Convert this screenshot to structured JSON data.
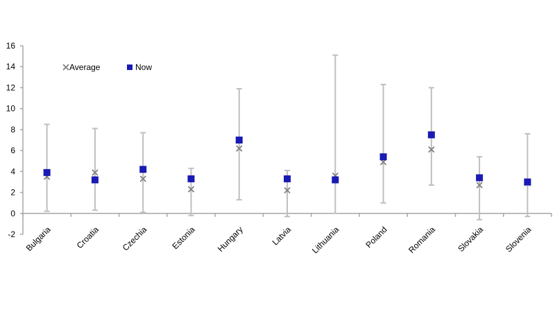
{
  "chart_data": {
    "type": "scatter",
    "title": "",
    "xlabel": "",
    "ylabel": "",
    "ylim": [
      -2,
      16
    ],
    "yticks": [
      -2,
      0,
      2,
      4,
      6,
      8,
      10,
      12,
      14,
      16
    ],
    "categories": [
      "Bulgaria",
      "Croatia",
      "Czechia",
      "Estonia",
      "Hungary",
      "Latvia",
      "Lithuania",
      "Poland",
      "Romania",
      "Slovakia",
      "Slovenia"
    ],
    "range_low": [
      0.2,
      0.3,
      0.1,
      -0.2,
      1.3,
      -0.3,
      0.0,
      1.0,
      2.7,
      -0.6,
      -0.3
    ],
    "range_high": [
      8.5,
      8.1,
      7.7,
      4.3,
      11.9,
      4.1,
      15.1,
      12.3,
      12.0,
      5.4,
      7.6
    ],
    "series": [
      {
        "name": "Average",
        "marker": "x",
        "color": "#7f7f7f",
        "values": [
          3.5,
          3.9,
          3.3,
          2.3,
          6.2,
          2.2,
          3.6,
          4.9,
          6.1,
          2.7,
          2.9
        ]
      },
      {
        "name": "Now",
        "marker": "square",
        "color": "#1a1ab4",
        "values": [
          3.9,
          3.2,
          4.2,
          3.3,
          7.0,
          3.3,
          3.2,
          5.4,
          7.5,
          3.4,
          3.0
        ]
      }
    ],
    "legend": [
      "Average",
      "Now"
    ],
    "colors": {
      "axis": "#a6a6a6",
      "whisker": "#bfbfbf"
    }
  }
}
